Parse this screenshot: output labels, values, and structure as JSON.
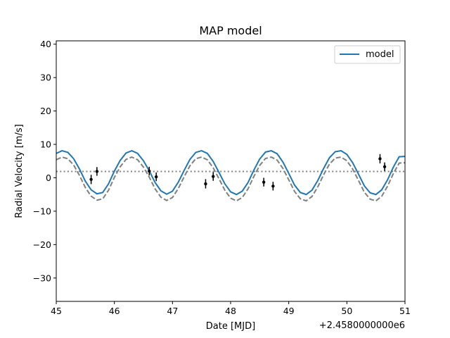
{
  "chart_data": {
    "type": "line",
    "title": "MAP model",
    "xlabel": "Date [MJD]",
    "ylabel": "Radial Velocity [m/s]",
    "x_offset_label": "+2.4580000000e6",
    "xlim": [
      45,
      51
    ],
    "ylim": [
      -37,
      41
    ],
    "xticks": [
      "45",
      "46",
      "47",
      "48",
      "49",
      "50",
      "51"
    ],
    "yticks": [
      "−30",
      "−20",
      "−10",
      "0",
      "10",
      "20",
      "30",
      "40"
    ],
    "ytick_values": [
      -30,
      -20,
      -10,
      0,
      10,
      20,
      30,
      40
    ],
    "legend": {
      "position": "top-right",
      "entries": [
        "model"
      ]
    },
    "colors": {
      "model": "#1f77b4",
      "planet_only": "#808080",
      "offset": "#808080",
      "data": "#000000"
    },
    "series": [
      {
        "name": "model",
        "style": "solid",
        "x": [
          45.0,
          45.1,
          45.2,
          45.3,
          45.4,
          45.5,
          45.6,
          45.7,
          45.8,
          45.9,
          46.0,
          46.1,
          46.2,
          46.3,
          46.4,
          46.5,
          46.6,
          46.7,
          46.8,
          46.9,
          47.0,
          47.1,
          47.2,
          47.3,
          47.4,
          47.5,
          47.6,
          47.7,
          47.8,
          47.9,
          48.0,
          48.1,
          48.2,
          48.3,
          48.4,
          48.5,
          48.6,
          48.7,
          48.8,
          48.9,
          49.0,
          49.1,
          49.2,
          49.3,
          49.4,
          49.5,
          49.6,
          49.7,
          49.8,
          49.9,
          50.0,
          50.1,
          50.2,
          50.3,
          50.4,
          50.5,
          50.6,
          50.7,
          50.8,
          50.9,
          51.0
        ],
        "values": [
          7.3,
          8.1,
          7.6,
          5.7,
          2.6,
          -1.0,
          -3.6,
          -4.8,
          -4.4,
          -1.8,
          2.0,
          5.2,
          7.4,
          8.1,
          7.3,
          5.1,
          2.1,
          -1.4,
          -3.9,
          -4.9,
          -4.0,
          -1.3,
          2.2,
          5.5,
          7.6,
          8.1,
          7.3,
          4.9,
          1.6,
          -1.8,
          -4.2,
          -5.0,
          -4.0,
          -1.4,
          2.3,
          5.6,
          7.7,
          8.1,
          7.2,
          4.7,
          1.3,
          -2.2,
          -4.4,
          -5.0,
          -3.7,
          -0.8,
          2.8,
          6.0,
          7.8,
          8.1,
          7.0,
          4.5,
          1.1,
          -2.4,
          -4.5,
          -5.0,
          -3.6,
          -0.6,
          3.2,
          6.3,
          6.4
        ]
      },
      {
        "style": "dashed",
        "x": [
          45.0,
          45.1,
          45.2,
          45.3,
          45.4,
          45.5,
          45.6,
          45.7,
          45.8,
          45.9,
          46.0,
          46.1,
          46.2,
          46.3,
          46.4,
          46.5,
          46.6,
          46.7,
          46.8,
          46.9,
          47.0,
          47.1,
          47.2,
          47.3,
          47.4,
          47.5,
          47.6,
          47.7,
          47.8,
          47.9,
          48.0,
          48.1,
          48.2,
          48.3,
          48.4,
          48.5,
          48.6,
          48.7,
          48.8,
          48.9,
          49.0,
          49.1,
          49.2,
          49.3,
          49.4,
          49.5,
          49.6,
          49.7,
          49.8,
          49.9,
          50.0,
          50.1,
          50.2,
          50.3,
          50.4,
          50.5,
          50.6,
          50.7,
          50.8,
          50.9,
          51.0
        ],
        "values": [
          5.4,
          6.2,
          5.7,
          3.8,
          0.7,
          -2.9,
          -5.5,
          -6.7,
          -6.3,
          -3.7,
          0.1,
          3.3,
          5.5,
          6.2,
          5.4,
          3.2,
          0.2,
          -3.3,
          -5.8,
          -6.8,
          -5.9,
          -3.2,
          0.3,
          3.6,
          5.7,
          6.2,
          5.4,
          3.0,
          -0.3,
          -3.7,
          -6.1,
          -6.9,
          -5.9,
          -3.3,
          0.4,
          3.7,
          5.8,
          6.2,
          5.3,
          2.8,
          -0.6,
          -4.1,
          -6.3,
          -6.9,
          -5.6,
          -2.7,
          0.9,
          4.1,
          5.9,
          6.2,
          5.1,
          2.6,
          -0.8,
          -4.3,
          -6.4,
          -6.9,
          -5.5,
          -2.5,
          1.3,
          4.4,
          4.5
        ]
      },
      {
        "style": "dotted",
        "x": [
          45,
          51
        ],
        "values": [
          1.9,
          1.9
        ]
      }
    ],
    "points": {
      "x": [
        45.6,
        45.7,
        46.6,
        46.72,
        47.57,
        47.7,
        48.57,
        48.73,
        50.57,
        50.65
      ],
      "y": [
        -0.5,
        1.9,
        2.0,
        0.3,
        -1.8,
        0.4,
        -1.3,
        -2.5,
        5.7,
        3.3
      ],
      "err": [
        1.4,
        1.3,
        1.3,
        1.3,
        1.4,
        1.3,
        1.3,
        1.3,
        1.4,
        1.3
      ]
    }
  }
}
